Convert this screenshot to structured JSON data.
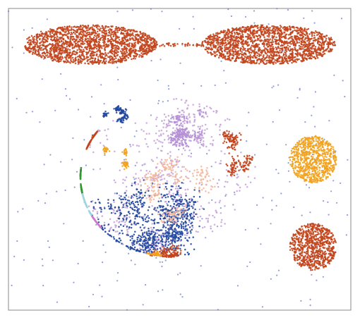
{
  "chart_data": {
    "type": "scatter",
    "title": "",
    "xlabel": "",
    "ylabel": "",
    "xlim": [
      0,
      100
    ],
    "ylim": [
      0,
      100
    ],
    "grid": false,
    "legend": "none",
    "axes_ticks": false,
    "series": [
      {
        "color": "#6a7ec7",
        "shape": "scatter-noise",
        "x": [
          0,
          100
        ],
        "y": [
          0,
          100
        ],
        "count": 280
      },
      {
        "color": "#c2451d",
        "shape": "ellipse",
        "center": [
          24,
          88
        ],
        "radius": [
          19.5,
          6.5
        ],
        "count": 1700
      },
      {
        "color": "#c2451d",
        "shape": "ellipse",
        "center": [
          76,
          88
        ],
        "radius": [
          19.5,
          6.5
        ],
        "count": 1700
      },
      {
        "color": "#c2451d",
        "shape": "bridge",
        "x": [
          43,
          57
        ],
        "y": 88,
        "count": 40
      },
      {
        "color": "#f2a21d",
        "shape": "disk",
        "center": [
          89,
          50
        ],
        "radius": [
          6.8,
          7.8
        ],
        "count": 750
      },
      {
        "color": "#c2451d",
        "shape": "disk",
        "center": [
          89,
          21
        ],
        "radius": [
          6.8,
          7.8
        ],
        "count": 750
      },
      {
        "color": "#c8a6dc",
        "shape": "blob",
        "center": [
          47,
          44
        ],
        "radius": [
          26,
          26
        ],
        "count": 600
      },
      {
        "color": "#2448a0",
        "shape": "blob",
        "center": [
          43,
          29
        ],
        "radius": [
          17,
          15
        ],
        "count": 850
      },
      {
        "color": "#2448a0",
        "shape": "blob",
        "center": [
          31,
          66
        ],
        "radius": [
          4,
          4
        ],
        "count": 120
      },
      {
        "color": "#2f9a2f",
        "shape": "blob",
        "center": [
          13,
          44
        ],
        "radius": [
          6,
          7
        ],
        "count": 220
      },
      {
        "color": "#c2451d",
        "shape": "blob",
        "center": [
          20,
          60
        ],
        "radius": [
          6,
          5
        ],
        "count": 180
      },
      {
        "color": "#c2451d",
        "shape": "blob",
        "center": [
          66,
          50
        ],
        "radius": [
          6,
          9
        ],
        "count": 200
      },
      {
        "color": "#c2451d",
        "shape": "blob",
        "center": [
          50,
          18
        ],
        "radius": [
          8,
          5
        ],
        "count": 140
      },
      {
        "color": "#f3b89c",
        "shape": "blob",
        "center": [
          50,
          40
        ],
        "radius": [
          12,
          10
        ],
        "count": 260
      },
      {
        "color": "#b58fd6",
        "shape": "blob",
        "center": [
          51,
          60
        ],
        "radius": [
          9,
          7
        ],
        "count": 240
      },
      {
        "color": "#f2a21d",
        "shape": "blob",
        "center": [
          32,
          52
        ],
        "radius": [
          4,
          5
        ],
        "count": 70
      },
      {
        "color": "#f2a21d",
        "shape": "blob",
        "center": [
          42,
          18
        ],
        "radius": [
          5,
          3
        ],
        "count": 70
      },
      {
        "color": "#9fd6e0",
        "shape": "blob",
        "center": [
          14,
          30
        ],
        "radius": [
          5,
          6
        ],
        "count": 160
      },
      {
        "color": "#d07acb",
        "shape": "blob",
        "center": [
          18,
          22
        ],
        "radius": [
          5,
          5
        ],
        "count": 110
      }
    ]
  }
}
